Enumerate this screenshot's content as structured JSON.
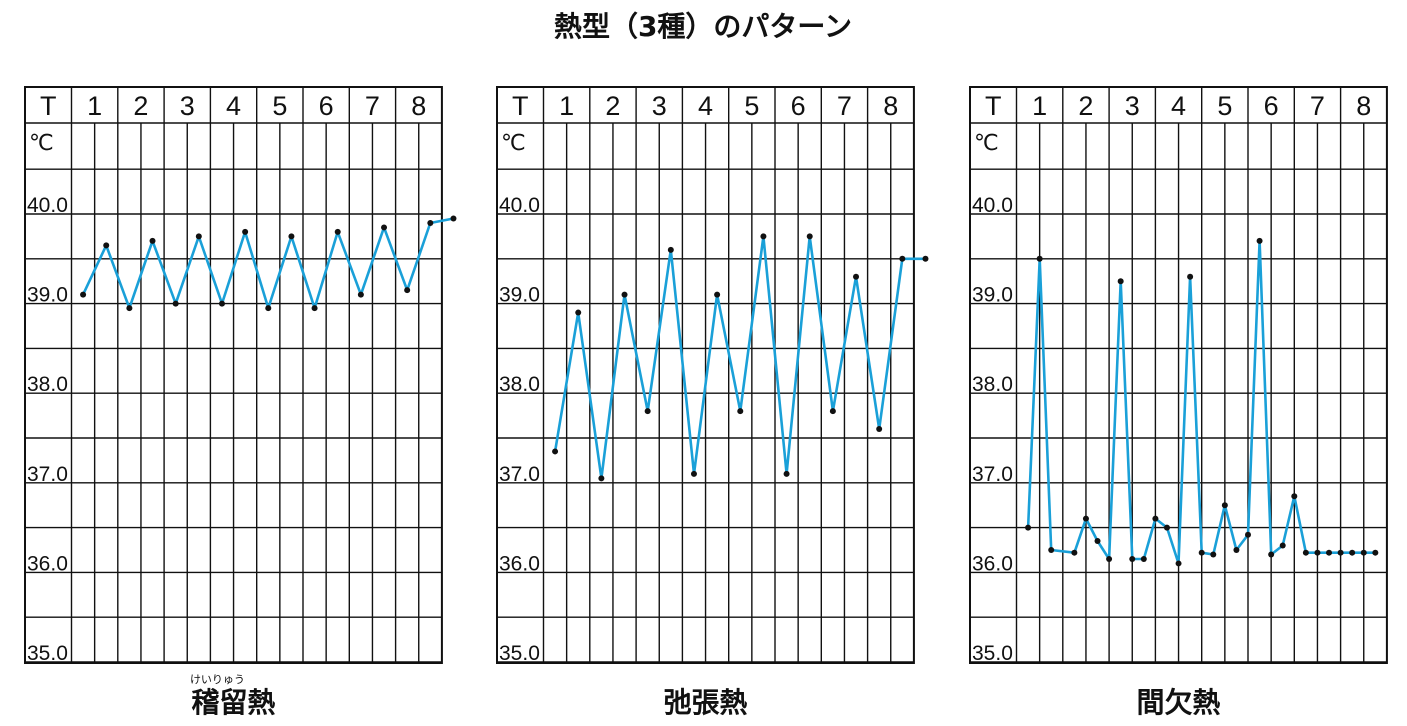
{
  "title": "熱型（3種）のパターン",
  "colors": {
    "line": "#1aa0d8",
    "point": "#111111",
    "grid": "#111111"
  },
  "header": {
    "first": "T",
    "unit": "℃",
    "days": [
      "1",
      "2",
      "3",
      "4",
      "5",
      "6",
      "7",
      "8"
    ]
  },
  "y_tick_labels": [
    "40.0",
    "39.0",
    "38.0",
    "37.0",
    "36.0",
    "35.0"
  ],
  "chart_data": [
    {
      "type": "line",
      "caption": "稽留熱",
      "ruby": "けいりゅう",
      "ylim": [
        35.0,
        40.0
      ],
      "xlim": [
        0.5,
        8.75
      ],
      "x": [
        0.75,
        1.25,
        1.75,
        2.25,
        2.75,
        3.25,
        3.75,
        4.25,
        4.75,
        5.25,
        5.75,
        6.25,
        6.75,
        7.25,
        7.75,
        8.25,
        8.75
      ],
      "values": [
        39.1,
        39.65,
        38.95,
        39.7,
        39.0,
        39.75,
        39.0,
        39.8,
        38.95,
        39.75,
        38.95,
        39.8,
        39.1,
        39.85,
        39.15,
        39.9,
        39.95
      ]
    },
    {
      "type": "line",
      "caption": "弛張熱",
      "ylim": [
        35.0,
        40.0
      ],
      "xlim": [
        0.5,
        8.75
      ],
      "x": [
        0.75,
        1.25,
        1.75,
        2.25,
        2.75,
        3.25,
        3.75,
        4.25,
        4.75,
        5.25,
        5.75,
        6.25,
        6.75,
        7.25,
        7.75,
        8.25,
        8.75
      ],
      "values": [
        37.35,
        38.9,
        37.05,
        39.1,
        37.8,
        39.6,
        37.1,
        39.1,
        37.8,
        39.75,
        37.1,
        39.75,
        37.8,
        39.3,
        37.6,
        39.5,
        39.5
      ]
    },
    {
      "type": "line",
      "caption": "間欠熱",
      "ylim": [
        35.0,
        40.0
      ],
      "xlim": [
        0.5,
        8.75
      ],
      "x": [
        0.75,
        1.0,
        1.25,
        1.75,
        2.0,
        2.25,
        2.5,
        2.75,
        3.0,
        3.25,
        3.5,
        3.75,
        4.0,
        4.25,
        4.5,
        4.75,
        5.0,
        5.25,
        5.5,
        5.75,
        6.0,
        6.25,
        6.5,
        6.75,
        7.0,
        7.25,
        7.5,
        7.75,
        8.0,
        8.25
      ],
      "values": [
        36.5,
        39.5,
        36.25,
        36.22,
        36.6,
        36.35,
        36.15,
        39.25,
        36.15,
        36.15,
        36.6,
        36.5,
        36.1,
        39.3,
        36.22,
        36.2,
        36.75,
        36.25,
        36.42,
        39.7,
        36.2,
        36.3,
        36.85,
        36.22,
        36.22,
        36.22,
        36.22,
        36.22,
        36.22,
        36.22
      ]
    }
  ]
}
